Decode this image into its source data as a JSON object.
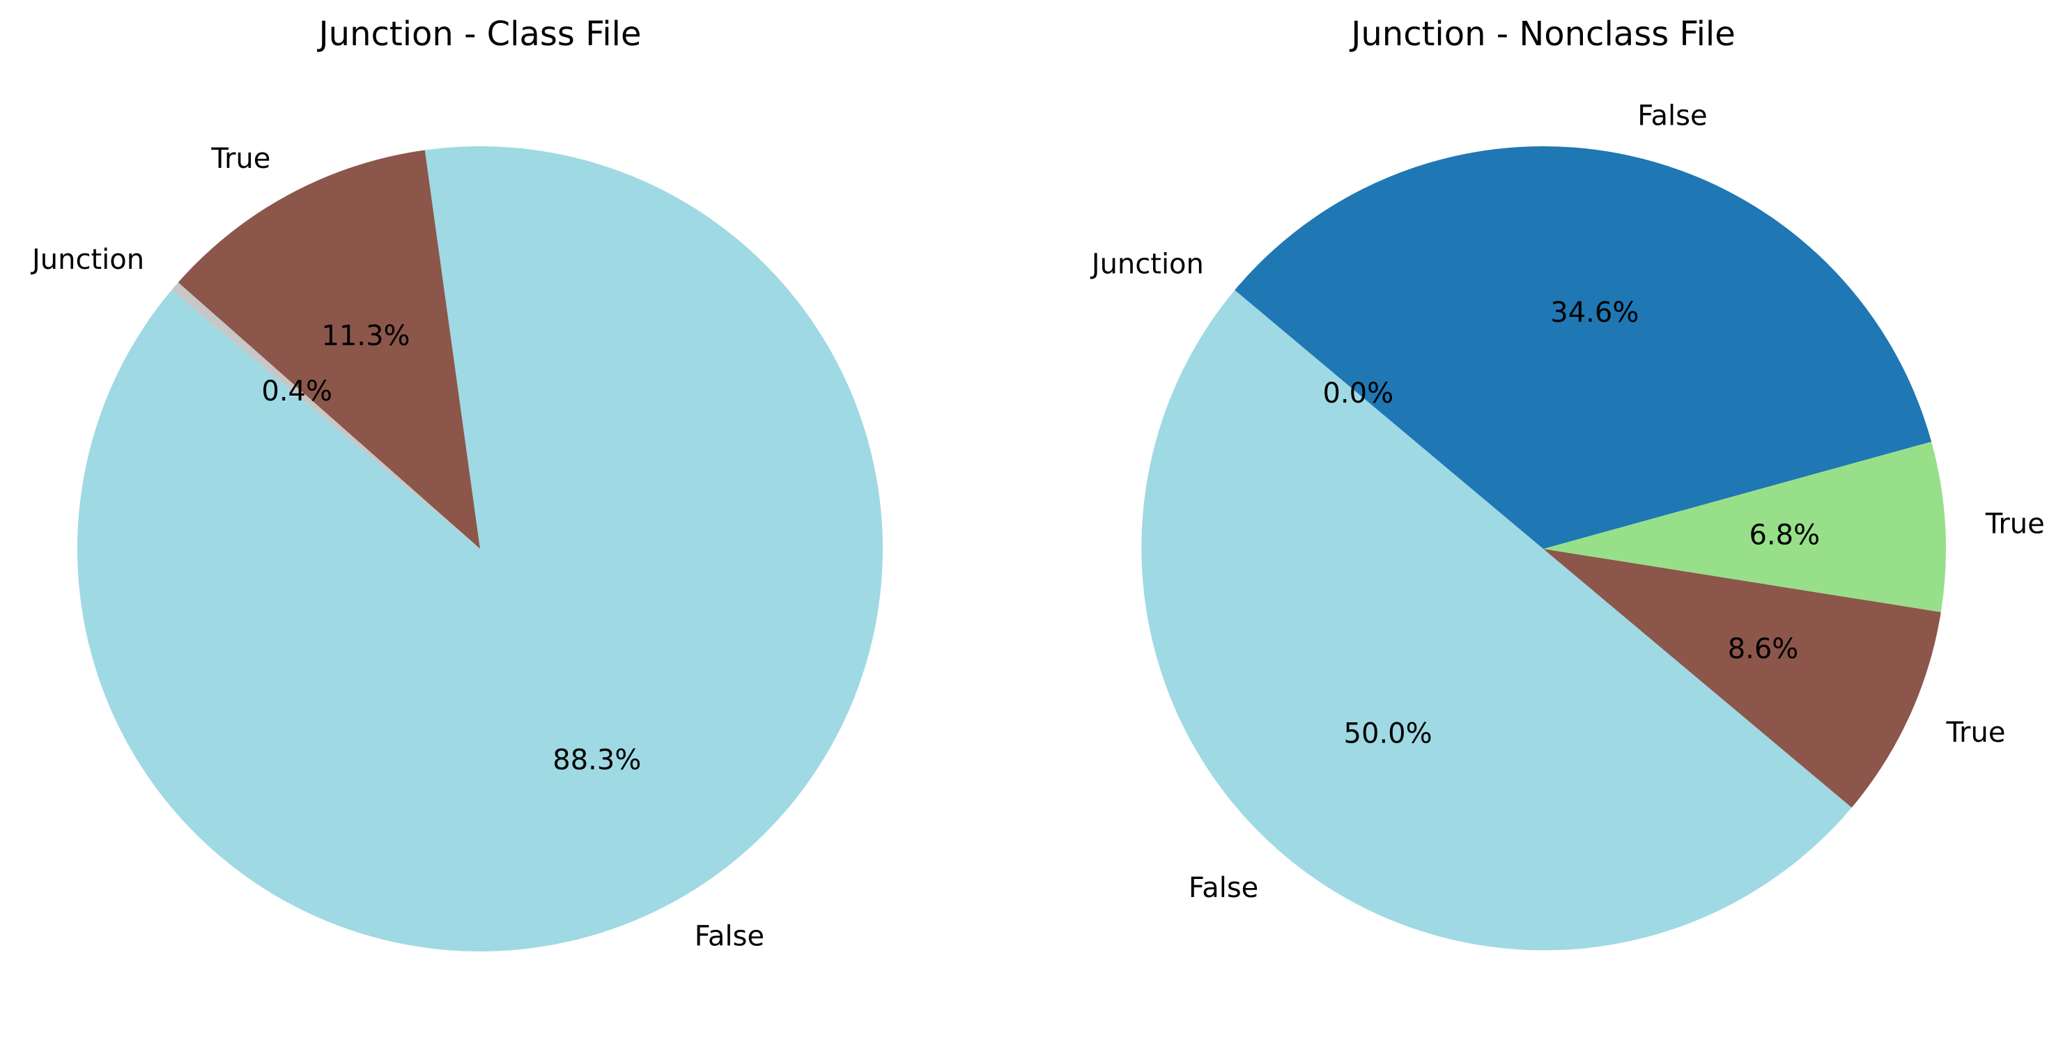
{
  "chart_data": [
    {
      "type": "pie",
      "title": "Junction - Class File",
      "slices": [
        {
          "label": "False",
          "value": 88.3,
          "pct_label": "88.3%",
          "color": "#9fd9e4"
        },
        {
          "label": "True",
          "value": 11.3,
          "pct_label": "11.3%",
          "color": "#8c564b"
        },
        {
          "label": "Junction",
          "value": 0.4,
          "pct_label": "0.4%",
          "color": "#c7c7c7"
        }
      ]
    },
    {
      "type": "pie",
      "title": "Junction - Nonclass File",
      "slices": [
        {
          "label": "False",
          "value": 50.0,
          "pct_label": "50.0%",
          "color": "#9fd9e4"
        },
        {
          "label": "True",
          "value": 8.6,
          "pct_label": "8.6%",
          "color": "#8c564b"
        },
        {
          "label": "True",
          "value": 6.8,
          "pct_label": "6.8%",
          "color": "#98df8a"
        },
        {
          "label": "False",
          "value": 34.6,
          "pct_label": "34.6%",
          "color": "#1f77b4"
        },
        {
          "label": "Junction",
          "value": 0.0,
          "pct_label": "0.0%",
          "color": "#c7c7c7"
        }
      ]
    }
  ]
}
